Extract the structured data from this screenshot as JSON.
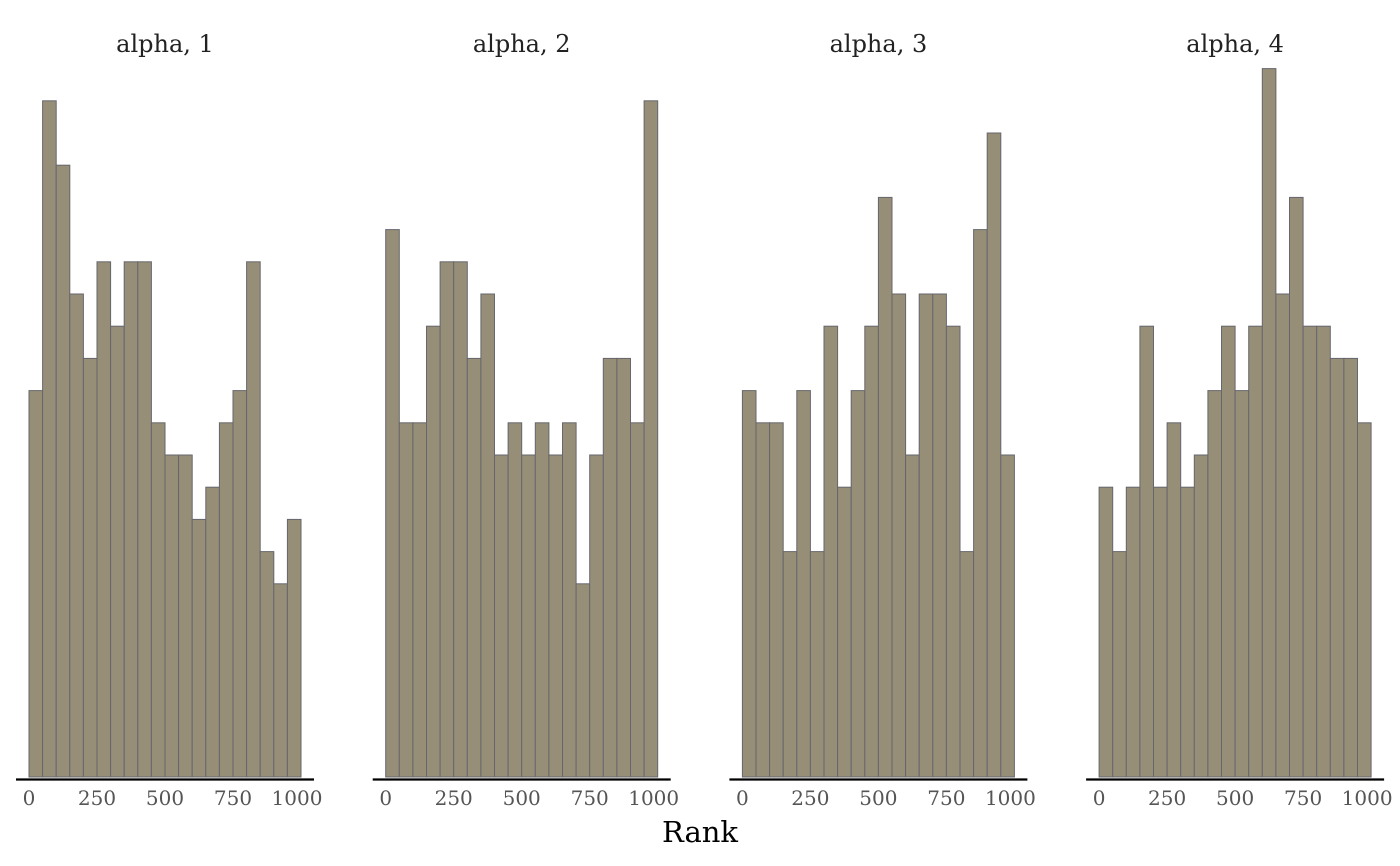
{
  "chart_data": {
    "type": "bar",
    "subtype": "rank-histogram",
    "xlabel": "Rank",
    "ylabel": "",
    "xlim": [
      0,
      1000
    ],
    "xticks": [
      "0",
      "250",
      "500",
      "750",
      "1000"
    ],
    "bins": 20,
    "grid": false,
    "legend": "none",
    "colors": {
      "fill": "#968e76",
      "edge": "#66666e",
      "axis": "#000000"
    },
    "panels": [
      {
        "title": "alpha, 1",
        "values": [
          12,
          21,
          19,
          15,
          13,
          16,
          14,
          16,
          16,
          11,
          10,
          10,
          8,
          9,
          11,
          12,
          16,
          7,
          6,
          8
        ]
      },
      {
        "title": "alpha, 2",
        "values": [
          17,
          11,
          11,
          14,
          16,
          16,
          13,
          15,
          10,
          11,
          10,
          11,
          10,
          11,
          6,
          10,
          13,
          13,
          11,
          21
        ]
      },
      {
        "title": "alpha, 3",
        "values": [
          12,
          11,
          11,
          7,
          12,
          7,
          14,
          9,
          12,
          14,
          18,
          15,
          10,
          15,
          15,
          14,
          7,
          17,
          20,
          10
        ]
      },
      {
        "title": "alpha, 4",
        "values": [
          9,
          7,
          9,
          14,
          9,
          11,
          9,
          10,
          12,
          14,
          12,
          14,
          22,
          15,
          18,
          14,
          14,
          13,
          13,
          11
        ]
      }
    ]
  }
}
